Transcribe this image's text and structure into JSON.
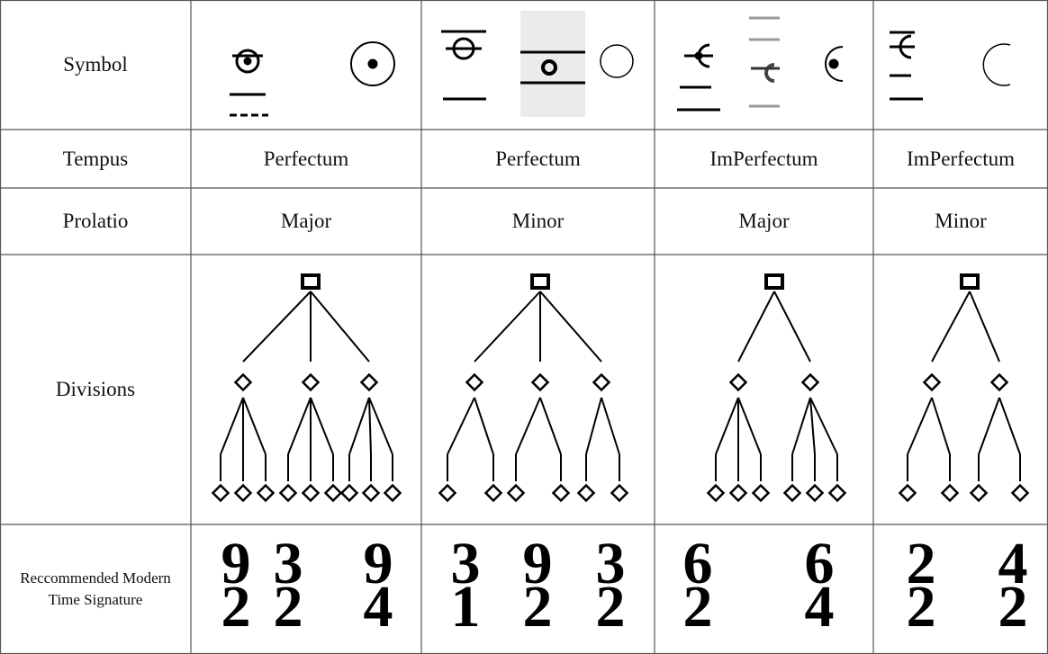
{
  "table": {
    "row_headers": [
      "Symbol",
      "Tempus",
      "Prolatio",
      "Divisions",
      "Reccommended Modern Time Signature"
    ],
    "tempus": [
      "Perfectum",
      "Perfectum",
      "ImPerfectum",
      "ImPerfectum"
    ],
    "prolatio": [
      "Major",
      "Minor",
      "Major",
      "Minor"
    ],
    "time_signatures": [
      [
        {
          "numerator": 9,
          "denominator": 2
        },
        {
          "numerator": 3,
          "denominator": 2
        },
        {
          "numerator": 9,
          "denominator": 4
        }
      ],
      [
        {
          "numerator": 3,
          "denominator": 1
        },
        {
          "numerator": 9,
          "denominator": 2
        },
        {
          "numerator": 3,
          "denominator": 2
        }
      ],
      [
        {
          "numerator": 6,
          "denominator": 2
        },
        {
          "numerator": 6,
          "denominator": 4
        }
      ],
      [
        {
          "numerator": 2,
          "denominator": 2
        },
        {
          "numerator": 4,
          "denominator": 2
        }
      ]
    ]
  }
}
